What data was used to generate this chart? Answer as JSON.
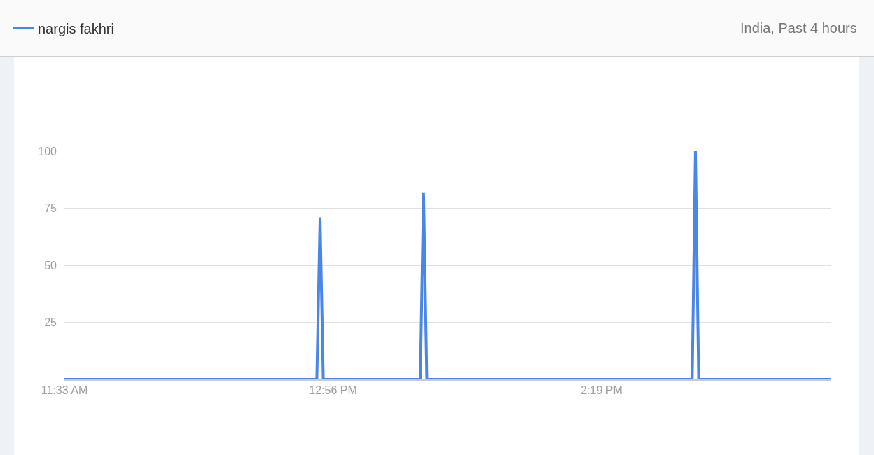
{
  "chart_data": {
    "type": "line",
    "annotations": [
      "India, Past 4 hours"
    ],
    "x": [
      11.55,
      12.85,
      12.8667,
      12.8833,
      13.3833,
      13.4,
      13.4167,
      14.7833,
      14.8,
      14.8167,
      15.5
    ],
    "series": [
      {
        "name": "nargis fakhri",
        "color": "#4a86e8",
        "values": [
          0,
          0,
          71,
          0,
          0,
          82,
          0,
          0,
          100,
          0,
          0
        ]
      }
    ],
    "xlim": [
      11.55,
      15.5
    ],
    "ylim": [
      0,
      100
    ],
    "xticks": [
      {
        "value": 11.55,
        "label": "11:33 AM"
      },
      {
        "value": 12.9333,
        "label": "12:56 PM"
      },
      {
        "value": 14.3167,
        "label": "2:19 PM"
      }
    ],
    "yticks": [
      25,
      50,
      75,
      100
    ],
    "grid": "y",
    "legend": "top left",
    "line_style": "solid"
  }
}
